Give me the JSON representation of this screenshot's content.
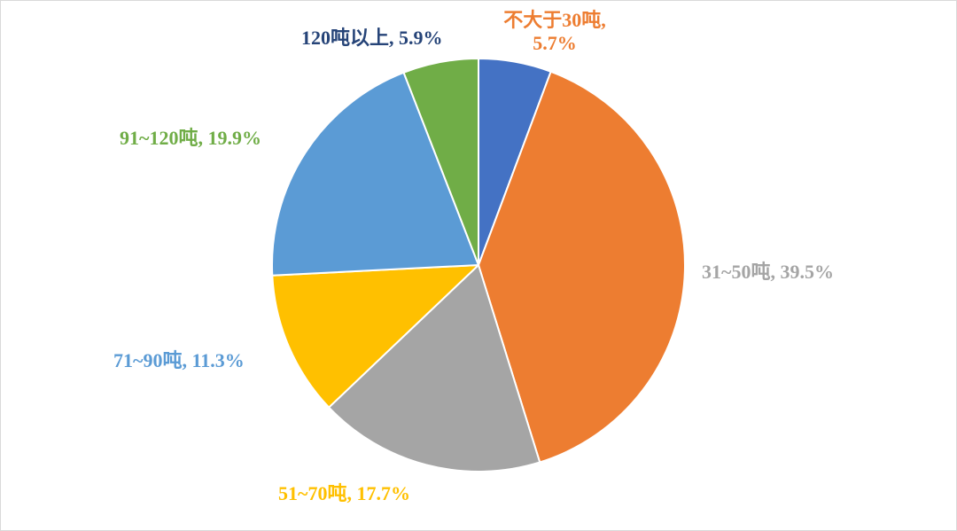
{
  "chart_data": {
    "type": "pie",
    "slices": [
      {
        "label": "不大于30吨",
        "value": 5.7,
        "display": "5.7%",
        "color": "#4472C4",
        "label_color": "#ED7D31"
      },
      {
        "label": "31~50吨",
        "value": 39.5,
        "display": "39.5%",
        "color": "#ED7D31",
        "label_color": "#A5A5A5"
      },
      {
        "label": "51~70吨",
        "value": 17.7,
        "display": "17.7%",
        "color": "#A5A5A5",
        "label_color": "#FFC000"
      },
      {
        "label": "71~90吨",
        "value": 11.3,
        "display": "11.3%",
        "color": "#FFC000",
        "label_color": "#5B9BD5"
      },
      {
        "label": "91~120吨",
        "value": 19.9,
        "display": "19.9%",
        "color": "#5B9BD5",
        "label_color": "#70AD47"
      },
      {
        "label": "120吨以上",
        "value": 5.9,
        "display": "5.9%",
        "color": "#70AD47",
        "label_color": "#264478"
      }
    ],
    "title": "",
    "legend": "none",
    "start_angle": "12 o'clock",
    "direction": "clockwise"
  }
}
